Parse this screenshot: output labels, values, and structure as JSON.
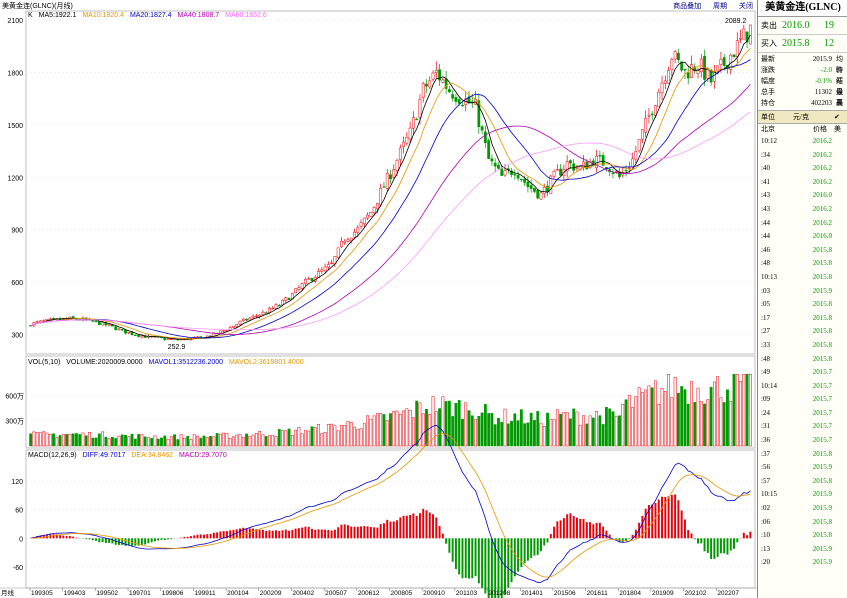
{
  "header": {
    "title": "美黄金连(GLNC)(月线)",
    "link_product": "商品叠加",
    "link_period": "周期",
    "link_close": "关闭"
  },
  "price_legend": {
    "label": "K",
    "ma5": "MA5:1922.1",
    "ma10": "MA10:1820.4",
    "ma20": "MA20:1827.4",
    "ma40": "MA40:1808.7",
    "ma60": "MA60:1652.6"
  },
  "vol_legend": {
    "label": "VOL(5,10)",
    "volume": "VOLUME:2020009.0000",
    "mavol1": "MAVOL1:3512236.2000",
    "mavol2": "MAVOL2:3619801.4000"
  },
  "macd_legend": {
    "label": "MACD(12,26,9)",
    "diff": "DIFF:49.7017",
    "dea": "DEA:34.8462",
    "macd": "MACD:29.7070"
  },
  "chart_data": {
    "type": "candlestick",
    "price_axis": [
      "2100",
      "1800",
      "1500",
      "1200",
      "900",
      "600",
      "300"
    ],
    "price_ylim": [
      200,
      2100
    ],
    "volume_axis": [
      "600万",
      "300万"
    ],
    "macd_axis": [
      "120",
      "60",
      "0",
      "-60"
    ],
    "annotations": {
      "high": "2089.2",
      "low": "252.9"
    },
    "x_labels": [
      "199305",
      "199403",
      "199502",
      "199701",
      "199806",
      "199911",
      "200104",
      "200209",
      "200402",
      "200507",
      "200612",
      "200805",
      "200910",
      "201103",
      "201208",
      "201401",
      "201506",
      "201611",
      "201804",
      "201909",
      "202102",
      "202207"
    ],
    "x_label_prefix": "月线",
    "price_profile": [
      [
        0,
        360
      ],
      [
        4,
        375
      ],
      [
        8,
        385
      ],
      [
        12,
        390
      ],
      [
        16,
        385
      ],
      [
        20,
        370
      ],
      [
        24,
        350
      ],
      [
        28,
        320
      ],
      [
        32,
        300
      ],
      [
        36,
        285
      ],
      [
        40,
        278
      ],
      [
        44,
        270
      ],
      [
        48,
        275
      ],
      [
        52,
        280
      ],
      [
        56,
        300
      ],
      [
        60,
        330
      ],
      [
        64,
        370
      ],
      [
        68,
        400
      ],
      [
        72,
        430
      ],
      [
        76,
        470
      ],
      [
        80,
        530
      ],
      [
        84,
        600
      ],
      [
        88,
        650
      ],
      [
        92,
        700
      ],
      [
        96,
        850
      ],
      [
        100,
        900
      ],
      [
        104,
        1000
      ],
      [
        108,
        1150
      ],
      [
        112,
        1300
      ],
      [
        116,
        1450
      ],
      [
        120,
        1700
      ],
      [
        124,
        1800
      ],
      [
        128,
        1700
      ],
      [
        132,
        1650
      ],
      [
        136,
        1600
      ],
      [
        140,
        1300
      ],
      [
        144,
        1200
      ],
      [
        148,
        1250
      ],
      [
        152,
        1150
      ],
      [
        156,
        1100
      ],
      [
        160,
        1200
      ],
      [
        164,
        1280
      ],
      [
        168,
        1250
      ],
      [
        172,
        1300
      ],
      [
        176,
        1280
      ],
      [
        180,
        1200
      ],
      [
        184,
        1300
      ],
      [
        188,
        1500
      ],
      [
        192,
        1700
      ],
      [
        196,
        1900
      ],
      [
        200,
        1800
      ],
      [
        204,
        1850
      ],
      [
        208,
        1750
      ],
      [
        212,
        1850
      ],
      [
        216,
        1950
      ],
      [
        220,
        2050
      ]
    ]
  },
  "panel": {
    "title": "美黄金连(GLNC)",
    "sell_label": "卖出",
    "sell_price": "2016.0",
    "sell_vol": "19",
    "buy_label": "买入",
    "buy_price": "2015.8",
    "buy_vol": "12",
    "stats": [
      {
        "label": "最新",
        "value": "2015.9",
        "right": "均价"
      },
      {
        "label": "涨跌",
        "value": "-2.0",
        "right": "昨结"
      },
      {
        "label": "幅度",
        "value": "-0.1%",
        "right": "开盘"
      },
      {
        "label": "总手",
        "value": "11302",
        "right": "最高"
      },
      {
        "label": "持仓",
        "value": "402203",
        "right": "最低"
      }
    ],
    "unit_label": "单位",
    "unit_value": "元/克",
    "unit_right": "✔ 美",
    "tick_header_left": "北京",
    "tick_header_right": "价格",
    "ticks": [
      {
        "t": "10:12",
        "p": "2016.2"
      },
      {
        "t": ":34",
        "p": "2016.2"
      },
      {
        "t": ":40",
        "p": "2016.2"
      },
      {
        "t": ":41",
        "p": "2016.2"
      },
      {
        "t": ":43",
        "p": "2016.0"
      },
      {
        "t": ":43",
        "p": "2016.2"
      },
      {
        "t": ":44",
        "p": "2016.2"
      },
      {
        "t": ":44",
        "p": "2016.0"
      },
      {
        "t": ":46",
        "p": "2015.8"
      },
      {
        "t": ":48",
        "p": "2015.8"
      },
      {
        "t": "10:13",
        "p": "2015.8"
      },
      {
        "t": ":03",
        "p": "2015.9"
      },
      {
        "t": ":05",
        "p": "2015.8"
      },
      {
        "t": ":17",
        "p": "2015.8"
      },
      {
        "t": ":27",
        "p": "2015.8"
      },
      {
        "t": ":33",
        "p": "2015.8"
      },
      {
        "t": ":48",
        "p": "2015.8"
      },
      {
        "t": ":49",
        "p": "2015.7"
      },
      {
        "t": "10:14",
        "p": "2015.7"
      },
      {
        "t": ":09",
        "p": "2015.7"
      },
      {
        "t": ":24",
        "p": "2015.7"
      },
      {
        "t": ":31",
        "p": "2015.7"
      },
      {
        "t": ":36",
        "p": "2015.7"
      },
      {
        "t": ":37",
        "p": "2015.8"
      },
      {
        "t": ":56",
        "p": "2015.9"
      },
      {
        "t": ":57",
        "p": "2015.8"
      },
      {
        "t": "10:15",
        "p": "2015.9"
      },
      {
        "t": ":02",
        "p": "2015.9"
      },
      {
        "t": ":06",
        "p": "2015.8"
      },
      {
        "t": ":10",
        "p": "2015.8"
      },
      {
        "t": ":13",
        "p": "2015.9"
      },
      {
        "t": ":20",
        "p": "2015.9"
      }
    ]
  },
  "colors": {
    "up": "#e8000b",
    "down": "#009900",
    "ma5": "#000000",
    "ma10": "#e69500",
    "ma20": "#0000cc",
    "ma40": "#b000b0",
    "ma60": "#ff99ff"
  }
}
